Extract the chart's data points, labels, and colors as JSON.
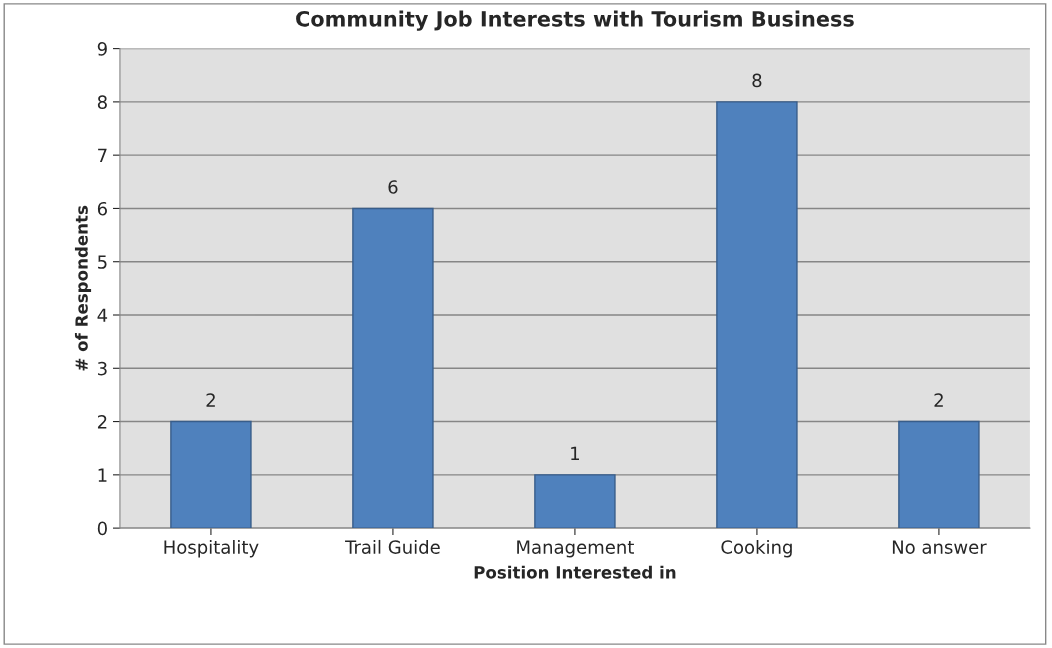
{
  "chart_data": {
    "type": "bar",
    "title": "Community Job Interests with Tourism Business",
    "xlabel": "Position Interested in",
    "ylabel": "# of Respondents",
    "categories": [
      "Hospitality",
      "Trail Guide",
      "Management",
      "Cooking",
      "No answer"
    ],
    "values": [
      2,
      6,
      1,
      8,
      2
    ],
    "color": "#4f81bd",
    "ylim": [
      0,
      9
    ],
    "yticks": [
      0,
      1,
      2,
      3,
      4,
      5,
      6,
      7,
      8,
      9
    ],
    "grid": "y",
    "data_labels": true,
    "legend": false
  }
}
